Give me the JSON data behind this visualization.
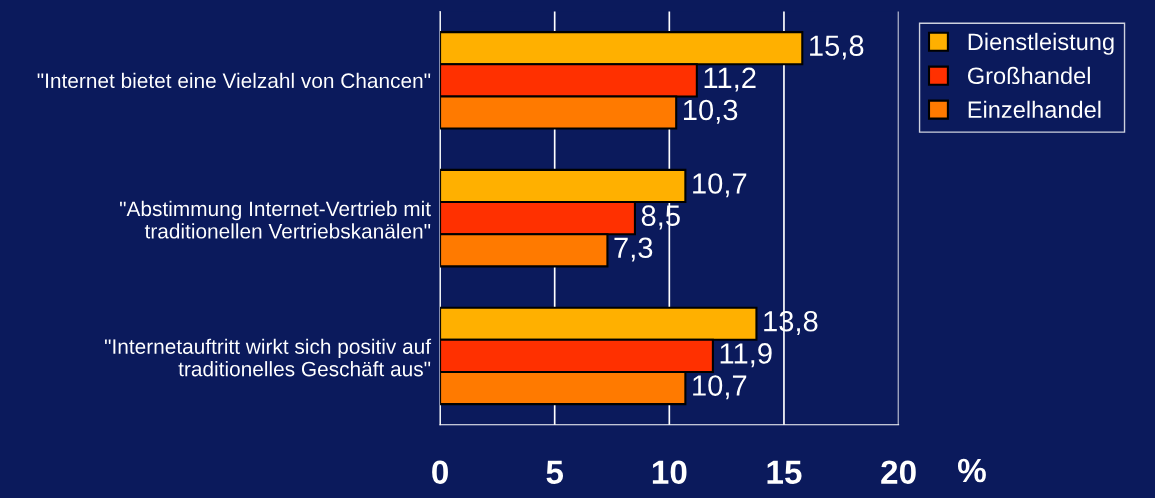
{
  "chart_data": {
    "type": "bar",
    "orientation": "horizontal",
    "categories": [
      "\"Internet bietet eine Vielzahl von Chancen\"",
      "\"Abstimmung Internet-Vertrieb mit traditionellen Vertriebskanälen\"",
      "\"Internetauftritt wirkt sich positiv auf traditionelles Geschäft aus\""
    ],
    "series": [
      {
        "name": "Dienstleistung",
        "color": "#ffb000",
        "values": [
          15.8,
          10.7,
          13.8
        ],
        "value_labels": [
          "15,8",
          "10,7",
          "13,8"
        ]
      },
      {
        "name": "Großhandel",
        "color": "#ff3000",
        "values": [
          11.2,
          8.5,
          11.9
        ],
        "value_labels": [
          "11,2",
          "8,5",
          "11,9"
        ]
      },
      {
        "name": "Einzelhandel",
        "color": "#ff7a00",
        "values": [
          10.3,
          7.3,
          10.7
        ],
        "value_labels": [
          "10,3",
          "7,3",
          "10,7"
        ]
      }
    ],
    "xlim": [
      0,
      20
    ],
    "xticks": [
      0,
      5,
      10,
      15,
      20
    ],
    "xlabel": "%",
    "grid": "x",
    "legend": "top right"
  }
}
